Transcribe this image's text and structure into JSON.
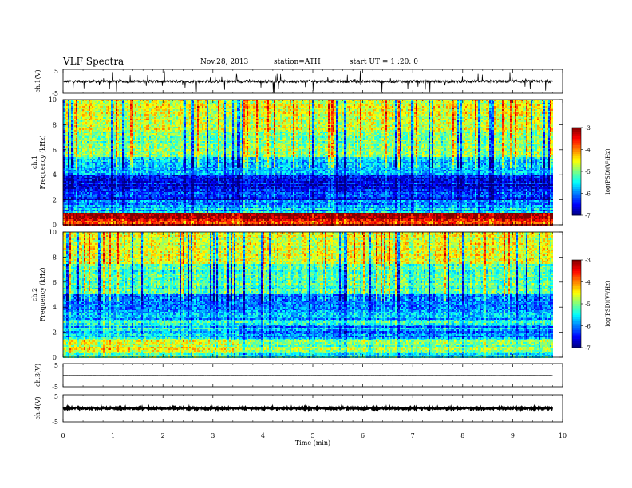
{
  "header": {
    "title": "VLF  Spectra",
    "date": "Nov.28, 2013",
    "station": "station=ATH",
    "start": "start  UT  =   1 :20: 0"
  },
  "chart_data": [
    {
      "type": "line",
      "name": "ch1-waveform",
      "ylabel": "ch.1(V)",
      "ylim": [
        -5,
        5
      ],
      "y_ticks": [
        "5",
        "-5"
      ],
      "xlim": [
        0,
        10
      ],
      "x_data_end": 9.8,
      "baseline": 0,
      "noise_amplitude": 0.6,
      "spike_amplitude": 4.5
    },
    {
      "type": "heatmap",
      "name": "ch1-spectrogram",
      "ylabel": "Frequency (kHz)",
      "ylabel_top": "ch.1",
      "xlim": [
        0,
        10
      ],
      "x_data_end": 9.8,
      "ylim": [
        0,
        10
      ],
      "y_ticks": [
        "0",
        "2",
        "4",
        "6",
        "8",
        "10"
      ],
      "colorbar": {
        "label": "log(PSD)(V²/Hz)",
        "range": [
          -7,
          -3
        ],
        "ticks": [
          "-3",
          "-4",
          "-5",
          "-6",
          "-7"
        ]
      },
      "frequency_profile_log_psd": [
        {
          "f": [
            0.0,
            0.4
          ],
          "value": -3.5
        },
        {
          "f": [
            0.4,
            1.0
          ],
          "value": -3.2
        },
        {
          "f": [
            1.0,
            2.0
          ],
          "value": -5.8
        },
        {
          "f": [
            2.0,
            4.0
          ],
          "value": -6.5
        },
        {
          "f": [
            4.0,
            5.5
          ],
          "value": -5.7
        },
        {
          "f": [
            5.5,
            7.5
          ],
          "value": -5.0
        },
        {
          "f": [
            7.5,
            10.0
          ],
          "value": -4.6
        }
      ]
    },
    {
      "type": "heatmap",
      "name": "ch2-spectrogram",
      "ylabel": "Frequency (kHz)",
      "ylabel_top": "ch.2",
      "xlim": [
        0,
        10
      ],
      "x_data_end": 9.8,
      "ylim": [
        0,
        10
      ],
      "y_ticks": [
        "0",
        "2",
        "4",
        "6",
        "8",
        "10"
      ],
      "colorbar": {
        "label": "log(PSD)(V²/Hz)",
        "range": [
          -7,
          -3
        ],
        "ticks": [
          "-3",
          "-4",
          "-5",
          "-6",
          "-7"
        ]
      },
      "frequency_profile_log_psd": [
        {
          "f": [
            0.0,
            0.4
          ],
          "value": -5.2
        },
        {
          "f": [
            0.4,
            1.5
          ],
          "value": -4.7
        },
        {
          "f": [
            1.5,
            3.0
          ],
          "value": -5.5
        },
        {
          "f": [
            3.0,
            5.0
          ],
          "value": -6.0
        },
        {
          "f": [
            5.0,
            7.5
          ],
          "value": -5.2
        },
        {
          "f": [
            7.5,
            10.0
          ],
          "value": -4.6
        }
      ]
    },
    {
      "type": "line",
      "name": "ch3-waveform",
      "ylabel": "ch.3(V)",
      "ylim": [
        -5,
        5
      ],
      "y_ticks": [
        "5",
        "-5"
      ],
      "xlim": [
        0,
        10
      ],
      "x_data_end": 9.8,
      "baseline": 0,
      "noise_amplitude": 0.05
    },
    {
      "type": "line",
      "name": "ch4-waveform",
      "ylabel": "ch.4(V)",
      "ylim": [
        -5,
        5
      ],
      "y_ticks": [
        "5",
        "-5"
      ],
      "xlim": [
        0,
        10
      ],
      "x_data_end": 9.8,
      "baseline": 0,
      "noise_amplitude": 0.3
    }
  ],
  "x_axis": {
    "label": "Time  (min)",
    "ticks": [
      "0",
      "1",
      "2",
      "3",
      "4",
      "5",
      "6",
      "7",
      "8",
      "9",
      "10"
    ]
  }
}
